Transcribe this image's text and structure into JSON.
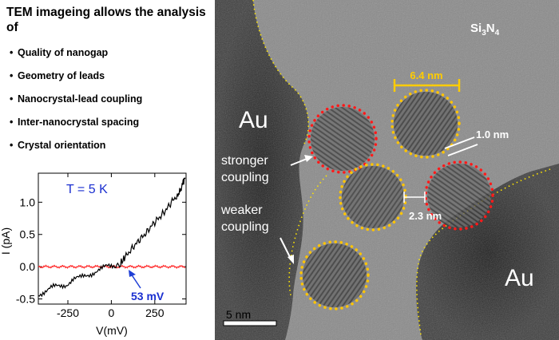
{
  "caption": {
    "title": "TEM imageing allows the analysis of",
    "bullets": [
      "Quality of nanogap",
      "Geometry of leads",
      "Nanocrystal-lead coupling",
      "Inter-nanocrystal spacing",
      "Crystal orientation"
    ]
  },
  "chart_data": {
    "type": "line",
    "annotation_temperature": "T = 5 K",
    "xlabel": "V(mV)",
    "ylabel": "I (pA)",
    "xlim": [
      -420,
      430
    ],
    "ylim": [
      -0.58,
      1.45
    ],
    "xticks": [
      -250,
      0,
      250
    ],
    "yticks": [
      -0.5,
      0.0,
      0.5,
      1.0
    ],
    "threshold_label": "53 mV",
    "threshold_x": 53,
    "series": [
      {
        "color": "#000000",
        "x": [
          -420,
          -380,
          -340,
          -300,
          -260,
          -220,
          -180,
          -140,
          -100,
          -60,
          -20,
          20,
          53,
          80,
          110,
          140,
          170,
          200,
          230,
          260,
          290,
          320,
          350,
          380,
          400,
          415,
          425
        ],
        "y": [
          -0.42,
          -0.38,
          -0.33,
          -0.3,
          -0.27,
          -0.2,
          -0.18,
          -0.13,
          -0.08,
          -0.04,
          0.0,
          0.02,
          0.05,
          0.15,
          0.25,
          0.35,
          0.44,
          0.52,
          0.63,
          0.72,
          0.8,
          0.9,
          1.02,
          1.1,
          1.2,
          1.32,
          1.38
        ]
      },
      {
        "color": "#ff2a2a",
        "x": [
          -420,
          425
        ],
        "y": [
          0.0,
          0.0
        ]
      }
    ]
  },
  "tem_image": {
    "material_label": "Si3N4",
    "lead_label_left": "Au",
    "lead_label_right": "Au",
    "size_label": "6.4 nm",
    "gap_label": "1.0 nm",
    "spacing_label": "2.3 nm",
    "stronger_label_line1": "stronger",
    "stronger_label_line2": "coupling",
    "weaker_label_line1": "weaker",
    "weaker_label_line2": "coupling",
    "scale_bar_label": "5 nm",
    "colors": {
      "strong": "#ff1a1a",
      "weak": "#ffc400",
      "lead_edge": "#ffe600",
      "size_marker": "#ffcc00"
    }
  }
}
